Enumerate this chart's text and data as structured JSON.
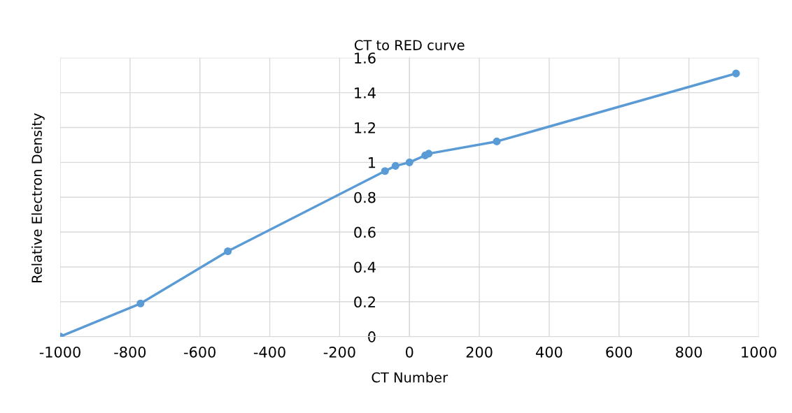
{
  "chart_data": {
    "type": "line",
    "title": "CT to RED curve",
    "xlabel": "CT Number",
    "ylabel": "Relative Electron Density",
    "x": [
      -1000,
      -770,
      -520,
      -70,
      -40,
      0,
      45,
      55,
      250,
      935
    ],
    "series": [
      {
        "color": "#5b9bd5",
        "values": [
          0,
          0.19,
          0.49,
          0.95,
          0.98,
          1.0,
          1.04,
          1.05,
          1.12,
          1.51
        ]
      }
    ],
    "xlim": [
      -1000,
      1000
    ],
    "xticks": [
      -1000,
      -800,
      -600,
      -400,
      -200,
      0,
      200,
      400,
      600,
      800,
      1000
    ],
    "ylim": [
      0,
      1.6
    ],
    "yticks": [
      0,
      0.2,
      0.4,
      0.6,
      0.8,
      1,
      1.2,
      1.4,
      1.6
    ],
    "grid": true,
    "marker": "circle",
    "line_style": "solid"
  }
}
